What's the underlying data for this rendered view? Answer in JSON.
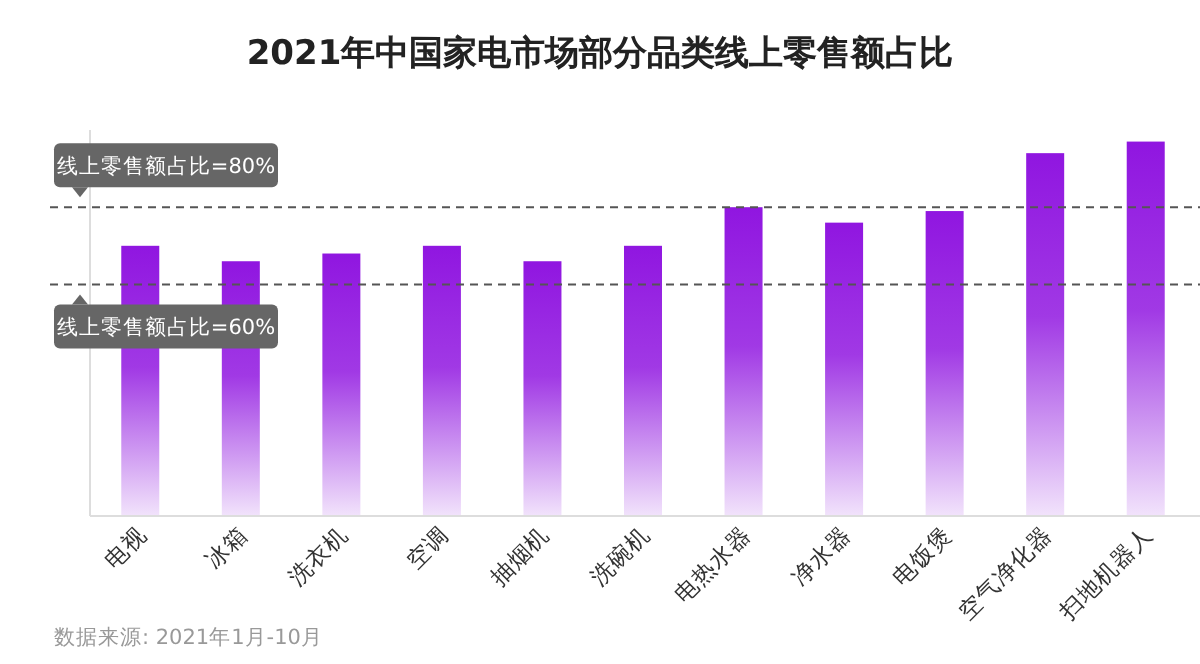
{
  "chart_data": {
    "type": "bar",
    "title": "2021年中国家电市场部分品类线上零售额占比",
    "categories": [
      "电视",
      "冰箱",
      "洗衣机",
      "空调",
      "抽烟机",
      "洗碗机",
      "电热水器",
      "净水器",
      "电饭煲",
      "空气净化器",
      "扫地机器人"
    ],
    "values": [
      70,
      66,
      68,
      70,
      66,
      70,
      80,
      76,
      79,
      94,
      97
    ],
    "ylim": [
      0,
      100
    ],
    "color": "#9016e0",
    "tick_labels": "x",
    "ref_lines": [
      {
        "axis": "y",
        "value": 80,
        "label": "线上零售额占比=80%",
        "color": "#555555",
        "line_style": "dashed"
      },
      {
        "axis": "y",
        "value": 60,
        "label": "线上零售额占比=60%",
        "color": "#555555",
        "line_style": "dashed"
      }
    ],
    "annotations": [
      "数据来源: 2021年1月-10月"
    ]
  }
}
